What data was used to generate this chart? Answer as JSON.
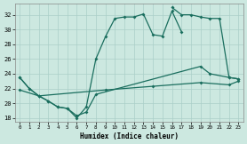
{
  "xlabel": "Humidex (Indice chaleur)",
  "bg_color": "#cce8e0",
  "grid_color": "#aacfc8",
  "line_color": "#1a6e5e",
  "xlim": [
    -0.5,
    23.5
  ],
  "ylim": [
    17.5,
    33.5
  ],
  "yticks": [
    18,
    20,
    22,
    24,
    26,
    28,
    30,
    32
  ],
  "xticks": [
    0,
    1,
    2,
    3,
    4,
    5,
    6,
    7,
    8,
    9,
    10,
    11,
    12,
    13,
    14,
    15,
    16,
    17,
    18,
    19,
    20,
    21,
    22,
    23
  ],
  "series1_x": [
    0,
    1,
    2,
    3,
    4,
    5,
    6,
    7,
    8,
    9,
    10,
    11,
    12,
    13,
    14,
    15,
    16,
    17
  ],
  "series1_y": [
    23.5,
    22.0,
    21.0,
    20.3,
    19.5,
    19.3,
    18.0,
    19.5,
    26.0,
    29.0,
    31.5,
    31.7,
    31.7,
    32.1,
    29.3,
    29.1,
    32.5,
    29.7
  ],
  "series2_x": [
    16,
    17,
    18,
    19,
    20,
    21,
    22,
    23
  ],
  "series2_y": [
    33.0,
    32.0,
    32.0,
    31.7,
    31.5,
    31.5,
    23.5,
    23.3
  ],
  "series3_x": [
    0,
    1,
    2,
    3,
    4,
    5,
    6,
    7,
    8,
    19,
    20,
    22,
    23
  ],
  "series3_y": [
    23.5,
    22.0,
    21.0,
    20.3,
    19.5,
    19.3,
    18.3,
    18.8,
    21.2,
    25.0,
    24.0,
    23.5,
    23.3
  ],
  "series4_x": [
    0,
    2,
    9,
    14,
    19,
    22,
    23
  ],
  "series4_y": [
    21.8,
    21.0,
    21.8,
    22.3,
    22.8,
    22.5,
    23.0
  ]
}
